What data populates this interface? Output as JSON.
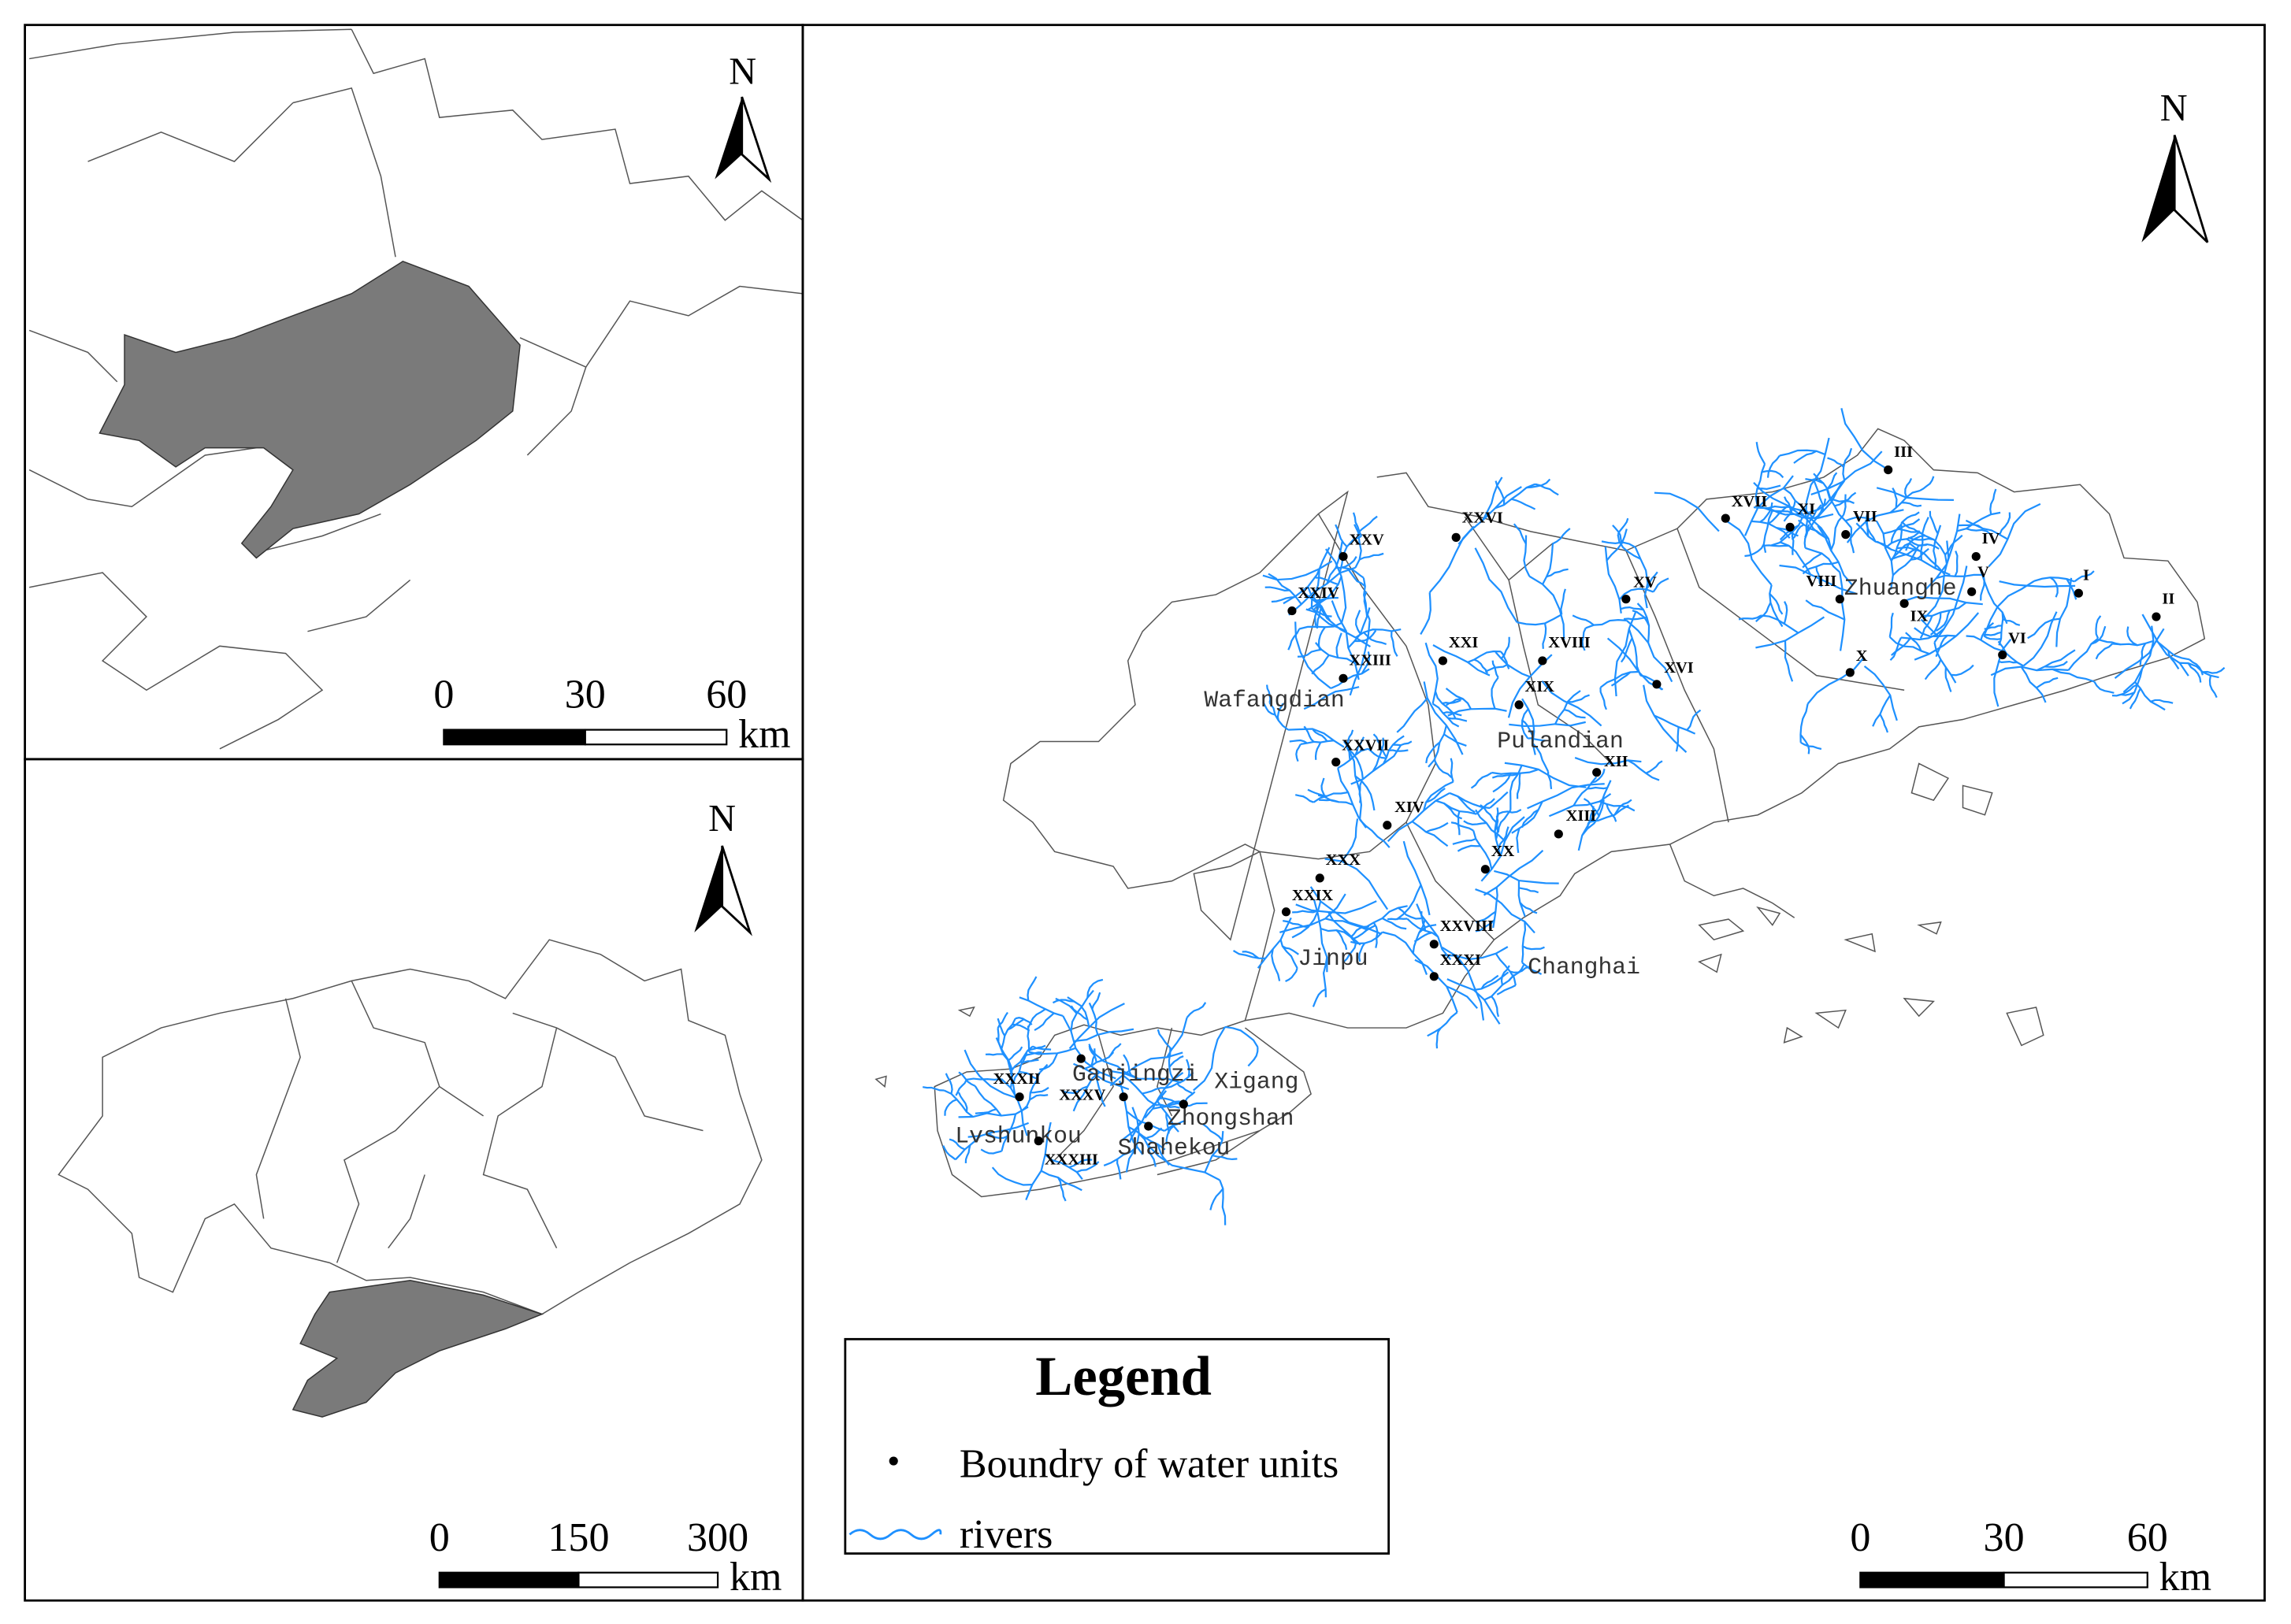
{
  "inset_maps": [
    {
      "north": "N",
      "scale": {
        "ticks": [
          0,
          30,
          60
        ],
        "unit": "km"
      }
    },
    {
      "north": "N",
      "scale": {
        "ticks": [
          0,
          150,
          300
        ],
        "unit": "km"
      }
    }
  ],
  "main_map": {
    "north": "N",
    "scale": {
      "ticks": [
        0,
        30,
        60
      ],
      "unit": "km"
    },
    "place_names": [
      "Wafangdian",
      "Pulandian",
      "Zhuanghe",
      "Jinpu",
      "Changhai",
      "Ganjingzi",
      "Xigang",
      "Zhongshan",
      "Shahekou",
      "Lvshunkou"
    ],
    "water_units": [
      "I",
      "II",
      "III",
      "IV",
      "V",
      "VI",
      "VII",
      "VIII",
      "IX",
      "X",
      "XI",
      "XII",
      "XIII",
      "XIV",
      "XV",
      "XVI",
      "XVII",
      "XVIII",
      "XIX",
      "XX",
      "XXI",
      "XXIII",
      "XXIV",
      "XXV",
      "XXVI",
      "XXVII",
      "XXVIII",
      "XXIX",
      "XXX",
      "XXXI",
      "XXXII",
      "XXXIII",
      "XXXV"
    ]
  },
  "legend": {
    "title": "Legend",
    "items": [
      "Boundry of water units",
      "rivers"
    ]
  }
}
